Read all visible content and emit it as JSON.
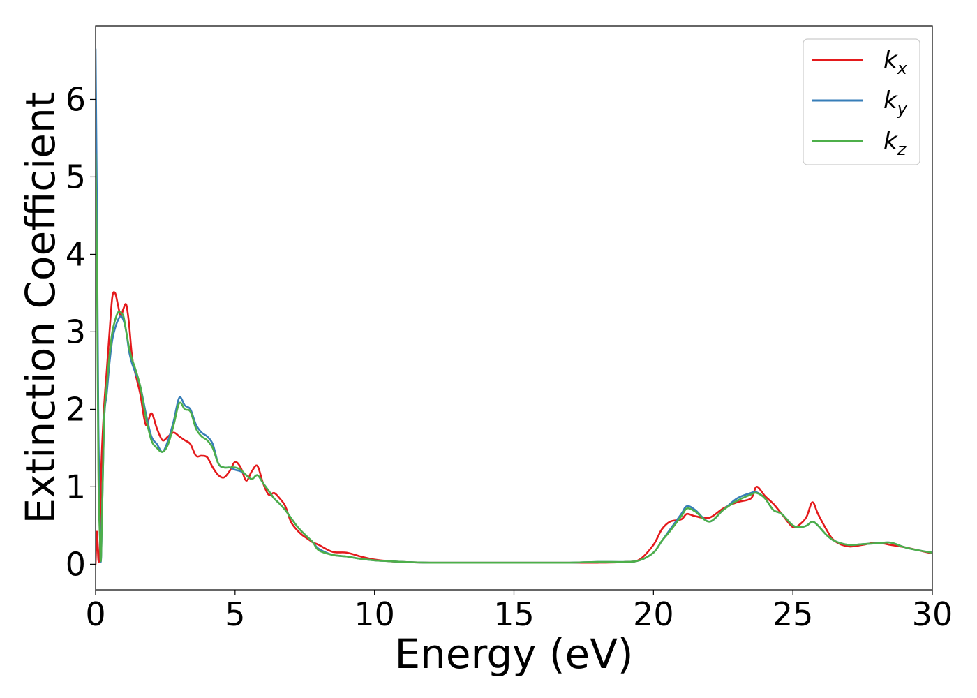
{
  "chart_data": {
    "type": "line",
    "title": "",
    "xlabel": "Energy (eV)",
    "ylabel": "Extinction Coefficient",
    "xlim": [
      0,
      30
    ],
    "ylim": [
      -0.33,
      6.95
    ],
    "xticks": [
      0,
      5,
      10,
      15,
      20,
      25,
      30
    ],
    "xtick_labels": [
      "0",
      "5",
      "10",
      "15",
      "20",
      "25",
      "30"
    ],
    "yticks": [
      0,
      1,
      2,
      3,
      4,
      5,
      6
    ],
    "ytick_labels": [
      "0",
      "1",
      "2",
      "3",
      "4",
      "5",
      "6"
    ],
    "grid": false,
    "legend_position": "top-right",
    "series": [
      {
        "name": "k_x",
        "label_main": "k",
        "label_sub": "x",
        "color": "#e41a1c",
        "x": [
          0.0,
          0.05,
          0.1,
          0.15,
          0.2,
          0.3,
          0.4,
          0.5,
          0.6,
          0.7,
          0.8,
          0.9,
          1.0,
          1.1,
          1.2,
          1.3,
          1.4,
          1.6,
          1.8,
          2.0,
          2.2,
          2.4,
          2.6,
          2.8,
          3.0,
          3.2,
          3.4,
          3.6,
          3.8,
          4.0,
          4.2,
          4.4,
          4.6,
          4.8,
          5.0,
          5.2,
          5.4,
          5.6,
          5.8,
          6.0,
          6.2,
          6.4,
          6.6,
          6.8,
          7.0,
          7.2,
          7.4,
          7.6,
          7.8,
          8.0,
          8.5,
          9.0,
          9.5,
          10.0,
          10.5,
          11.0,
          12.0,
          13.0,
          14.0,
          15.0,
          16.0,
          17.0,
          18.0,
          19.0,
          19.5,
          20.0,
          20.3,
          20.6,
          21.0,
          21.2,
          21.5,
          22.0,
          22.5,
          23.0,
          23.5,
          23.7,
          24.0,
          24.3,
          24.6,
          25.0,
          25.3,
          25.5,
          25.7,
          25.9,
          26.2,
          26.5,
          27.0,
          27.5,
          28.0,
          28.5,
          29.0,
          29.5,
          30.0
        ],
        "y": [
          0.0,
          0.42,
          0.05,
          0.2,
          1.2,
          2.0,
          2.5,
          3.0,
          3.45,
          3.5,
          3.35,
          3.2,
          3.3,
          3.35,
          3.1,
          2.7,
          2.5,
          2.2,
          1.8,
          1.95,
          1.75,
          1.6,
          1.65,
          1.7,
          1.65,
          1.6,
          1.55,
          1.4,
          1.4,
          1.38,
          1.25,
          1.15,
          1.12,
          1.2,
          1.32,
          1.25,
          1.08,
          1.2,
          1.27,
          1.05,
          0.9,
          0.92,
          0.85,
          0.75,
          0.55,
          0.45,
          0.38,
          0.33,
          0.28,
          0.25,
          0.16,
          0.15,
          0.1,
          0.06,
          0.04,
          0.03,
          0.02,
          0.02,
          0.02,
          0.02,
          0.02,
          0.02,
          0.02,
          0.03,
          0.06,
          0.25,
          0.45,
          0.55,
          0.58,
          0.65,
          0.62,
          0.6,
          0.72,
          0.8,
          0.85,
          1.0,
          0.88,
          0.78,
          0.65,
          0.48,
          0.53,
          0.62,
          0.8,
          0.65,
          0.45,
          0.3,
          0.23,
          0.25,
          0.28,
          0.25,
          0.22,
          0.18,
          0.14
        ]
      },
      {
        "name": "k_y",
        "label_main": "k",
        "label_sub": "y",
        "color": "#377eb8",
        "x": [
          0.0,
          0.05,
          0.1,
          0.15,
          0.2,
          0.3,
          0.4,
          0.5,
          0.6,
          0.7,
          0.8,
          0.9,
          1.0,
          1.1,
          1.2,
          1.3,
          1.4,
          1.6,
          1.8,
          2.0,
          2.2,
          2.4,
          2.6,
          2.8,
          3.0,
          3.2,
          3.4,
          3.6,
          3.8,
          4.0,
          4.2,
          4.4,
          4.6,
          4.8,
          5.0,
          5.2,
          5.4,
          5.6,
          5.8,
          6.0,
          6.2,
          6.4,
          6.6,
          6.8,
          7.0,
          7.2,
          7.4,
          7.6,
          7.8,
          8.0,
          8.5,
          9.0,
          9.5,
          10.0,
          10.5,
          11.0,
          12.0,
          13.0,
          14.0,
          15.0,
          16.0,
          17.0,
          18.0,
          19.0,
          19.5,
          20.0,
          20.3,
          20.6,
          21.0,
          21.2,
          21.5,
          22.0,
          22.5,
          23.0,
          23.5,
          23.7,
          24.0,
          24.3,
          24.6,
          25.0,
          25.3,
          25.5,
          25.7,
          25.9,
          26.2,
          26.5,
          27.0,
          27.5,
          28.0,
          28.5,
          29.0,
          29.5,
          30.0
        ],
        "y": [
          6.65,
          4.5,
          1.8,
          0.5,
          0.1,
          1.8,
          2.2,
          2.6,
          2.9,
          3.05,
          3.15,
          3.2,
          3.15,
          3.0,
          2.75,
          2.6,
          2.5,
          2.3,
          1.95,
          1.65,
          1.55,
          1.45,
          1.6,
          1.85,
          2.15,
          2.05,
          2.0,
          1.8,
          1.7,
          1.65,
          1.55,
          1.3,
          1.25,
          1.25,
          1.22,
          1.2,
          1.15,
          1.1,
          1.15,
          1.05,
          0.95,
          0.85,
          0.78,
          0.7,
          0.6,
          0.5,
          0.42,
          0.35,
          0.28,
          0.2,
          0.12,
          0.1,
          0.07,
          0.05,
          0.04,
          0.03,
          0.02,
          0.02,
          0.02,
          0.02,
          0.02,
          0.02,
          0.03,
          0.03,
          0.05,
          0.15,
          0.3,
          0.45,
          0.65,
          0.75,
          0.7,
          0.55,
          0.7,
          0.85,
          0.92,
          0.93,
          0.85,
          0.7,
          0.65,
          0.5,
          0.48,
          0.5,
          0.55,
          0.5,
          0.38,
          0.3,
          0.25,
          0.26,
          0.27,
          0.28,
          0.22,
          0.18,
          0.15
        ]
      },
      {
        "name": "k_z",
        "label_main": "k",
        "label_sub": "z",
        "color": "#4daf4a",
        "x": [
          0.0,
          0.05,
          0.1,
          0.15,
          0.2,
          0.3,
          0.4,
          0.5,
          0.6,
          0.7,
          0.8,
          0.9,
          1.0,
          1.1,
          1.2,
          1.3,
          1.4,
          1.6,
          1.8,
          2.0,
          2.2,
          2.4,
          2.6,
          2.8,
          3.0,
          3.2,
          3.4,
          3.6,
          3.8,
          4.0,
          4.2,
          4.4,
          4.6,
          4.8,
          5.0,
          5.2,
          5.4,
          5.6,
          5.8,
          6.0,
          6.2,
          6.4,
          6.6,
          6.8,
          7.0,
          7.2,
          7.4,
          7.6,
          7.8,
          8.0,
          8.5,
          9.0,
          9.5,
          10.0,
          10.5,
          11.0,
          12.0,
          13.0,
          14.0,
          15.0,
          16.0,
          17.0,
          18.0,
          19.0,
          19.5,
          20.0,
          20.3,
          20.6,
          21.0,
          21.2,
          21.5,
          22.0,
          22.5,
          23.0,
          23.5,
          23.7,
          24.0,
          24.3,
          24.6,
          25.0,
          25.3,
          25.5,
          25.7,
          25.9,
          26.2,
          26.5,
          27.0,
          27.5,
          28.0,
          28.5,
          29.0,
          29.5,
          30.0
        ],
        "y": [
          5.3,
          3.8,
          1.2,
          0.4,
          0.12,
          1.8,
          2.3,
          2.7,
          3.0,
          3.15,
          3.25,
          3.25,
          3.2,
          3.0,
          2.8,
          2.65,
          2.55,
          2.3,
          1.9,
          1.6,
          1.5,
          1.45,
          1.55,
          1.8,
          2.08,
          2.0,
          1.97,
          1.75,
          1.65,
          1.6,
          1.5,
          1.3,
          1.25,
          1.25,
          1.25,
          1.22,
          1.15,
          1.1,
          1.15,
          1.05,
          0.95,
          0.85,
          0.78,
          0.7,
          0.6,
          0.5,
          0.42,
          0.35,
          0.28,
          0.18,
          0.12,
          0.1,
          0.07,
          0.05,
          0.04,
          0.03,
          0.02,
          0.02,
          0.02,
          0.02,
          0.02,
          0.02,
          0.03,
          0.03,
          0.05,
          0.15,
          0.3,
          0.43,
          0.62,
          0.72,
          0.68,
          0.55,
          0.7,
          0.82,
          0.9,
          0.92,
          0.85,
          0.7,
          0.65,
          0.5,
          0.48,
          0.5,
          0.55,
          0.5,
          0.38,
          0.3,
          0.25,
          0.26,
          0.27,
          0.28,
          0.22,
          0.18,
          0.15
        ]
      }
    ]
  }
}
